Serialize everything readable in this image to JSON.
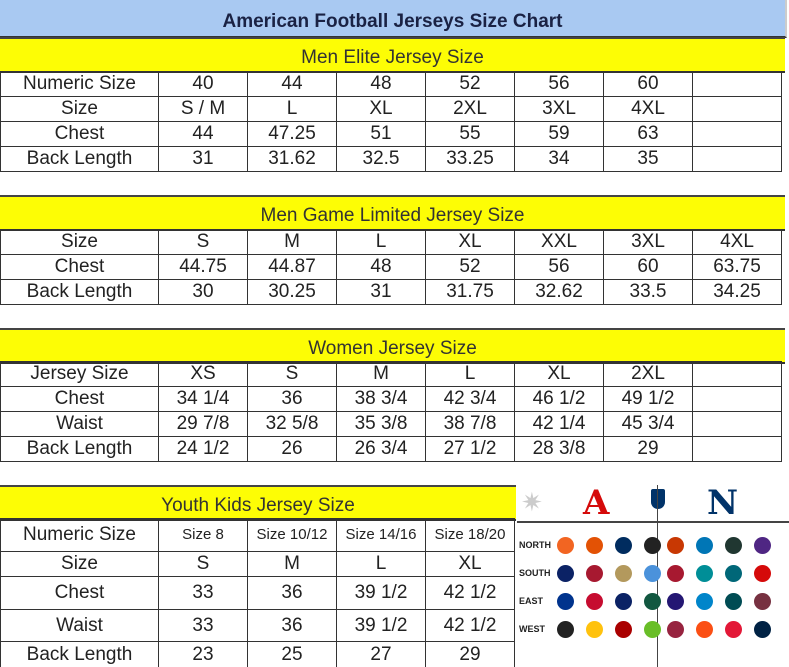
{
  "title": "American Football Jerseys Size Chart",
  "men_elite": {
    "header": "Men Elite Jersey Size",
    "rows": [
      [
        "Numeric Size",
        "40",
        "44",
        "48",
        "52",
        "56",
        "60",
        ""
      ],
      [
        "Size",
        "S / M",
        "L",
        "XL",
        "2XL",
        "3XL",
        "4XL",
        ""
      ],
      [
        "Chest",
        "44",
        "47.25",
        "51",
        "55",
        "59",
        "63",
        ""
      ],
      [
        "Back Length",
        "31",
        "31.62",
        "32.5",
        "33.25",
        "34",
        "35",
        ""
      ]
    ]
  },
  "men_game": {
    "header": "Men Game Limited Jersey Size",
    "rows": [
      [
        "Size",
        "S",
        "M",
        "L",
        "XL",
        "XXL",
        "3XL",
        "4XL"
      ],
      [
        "Chest",
        "44.75",
        "44.87",
        "48",
        "52",
        "56",
        "60",
        "63.75"
      ],
      [
        "Back Length",
        "30",
        "30.25",
        "31",
        "31.75",
        "32.62",
        "33.5",
        "34.25"
      ]
    ]
  },
  "women": {
    "header": "Women Jersey Size",
    "rows": [
      [
        "Jersey Size",
        "XS",
        "S",
        "M",
        "L",
        "XL",
        "2XL",
        ""
      ],
      [
        "Chest",
        "34 1/4",
        "36",
        "38 3/4",
        "42 3/4",
        "46 1/2",
        "49 1/2",
        ""
      ],
      [
        "Waist",
        "29 7/8",
        "32 5/8",
        "35 3/8",
        "38 7/8",
        "42 1/4",
        "45 3/4",
        ""
      ],
      [
        "Back Length",
        "24 1/2",
        "26",
        "26 3/4",
        "27 1/2",
        "28 3/8",
        "29",
        ""
      ]
    ]
  },
  "youth": {
    "header": "Youth Kids Jersey Size",
    "rows": [
      [
        "Numeric Size",
        "Size 8",
        "Size 10/12",
        "Size 14/16",
        "Size 18/20"
      ],
      [
        "Size",
        "S",
        "M",
        "L",
        "XL"
      ],
      [
        "Chest",
        "33",
        "36",
        "39 1/2",
        "42 1/2"
      ],
      [
        "Waist",
        "33",
        "36",
        "39 1/2",
        "42 1/2"
      ],
      [
        "Back Length",
        "23",
        "25",
        "27",
        "29"
      ]
    ]
  },
  "logos": {
    "afc": "A",
    "nfc": "N",
    "divisions": [
      "NORTH",
      "SOUTH",
      "EAST",
      "WEST"
    ],
    "afc_colors": [
      [
        "#f26522",
        "#e35205",
        "#002c5f",
        "#222"
      ],
      [
        "#0b2265",
        "#a71930",
        "#b3995d",
        "#4b92db"
      ],
      [
        "#00338d",
        "#c60c30",
        "#0b2265",
        "#125740"
      ],
      [
        "#222",
        "#ffc20e",
        "#aa0000",
        "#69be28"
      ]
    ],
    "nfc_colors": [
      [
        "#c83803",
        "#0076b6",
        "#203731",
        "#4f2683"
      ],
      [
        "#a71930",
        "#008e97",
        "#006778",
        "#d50a0a"
      ],
      [
        "#241773",
        "#0085ca",
        "#004c54",
        "#773141"
      ],
      [
        "#97233f",
        "#fb4f14",
        "#e31837",
        "#002244"
      ]
    ]
  }
}
